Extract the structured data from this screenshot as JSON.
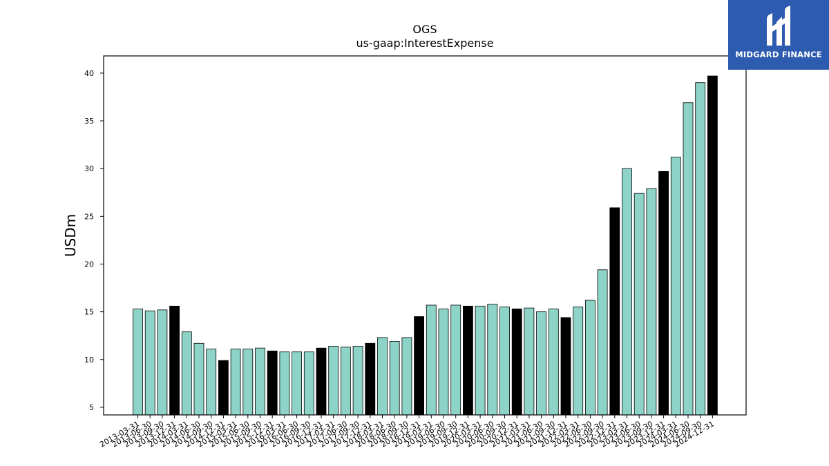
{
  "brand": {
    "name": "MIDGARD FINANCE",
    "color": "#2d5bb0"
  },
  "chart_data": {
    "type": "bar",
    "title": "OGS",
    "subtitle": "us-gaap:InterestExpense",
    "xlabel": "",
    "ylabel": "USDm",
    "ylim": [
      4.2,
      41.8
    ],
    "yticks": [
      5,
      10,
      15,
      20,
      25,
      30,
      35,
      40
    ],
    "grid": false,
    "colors": {
      "quarter": "#8dd3c7",
      "year_end": "#000000",
      "edge": "#000000"
    },
    "categories": [
      "2013-03-31",
      "2013-06-30",
      "2013-09-30",
      "2013-12-31",
      "2014-03-31",
      "2014-06-30",
      "2014-09-30",
      "2014-12-31",
      "2015-03-31",
      "2015-06-30",
      "2015-09-30",
      "2015-12-31",
      "2016-03-31",
      "2016-06-30",
      "2016-09-30",
      "2016-12-31",
      "2017-03-31",
      "2017-06-30",
      "2017-09-30",
      "2017-12-31",
      "2018-03-31",
      "2018-06-30",
      "2018-09-30",
      "2018-12-31",
      "2019-03-31",
      "2019-06-30",
      "2019-09-30",
      "2019-12-31",
      "2020-03-31",
      "2020-06-30",
      "2020-09-30",
      "2020-12-31",
      "2021-03-31",
      "2021-06-30",
      "2021-09-30",
      "2021-12-31",
      "2022-03-31",
      "2022-06-30",
      "2022-09-30",
      "2022-12-31",
      "2023-03-31",
      "2023-06-30",
      "2023-09-30",
      "2023-12-31",
      "2024-03-31",
      "2024-06-30",
      "2024-09-30",
      "2024-12-31"
    ],
    "values": [
      15.3,
      15.1,
      15.2,
      15.6,
      12.9,
      11.7,
      11.1,
      9.9,
      11.1,
      11.1,
      11.2,
      10.9,
      10.8,
      10.8,
      10.8,
      11.2,
      11.4,
      11.3,
      11.4,
      11.7,
      12.3,
      11.9,
      12.3,
      14.5,
      15.7,
      15.3,
      15.7,
      15.6,
      15.6,
      15.8,
      15.5,
      15.3,
      15.4,
      15.0,
      15.3,
      14.4,
      15.5,
      16.2,
      19.4,
      25.9,
      30.0,
      27.4,
      27.9,
      29.7,
      31.2,
      36.9,
      39.0,
      39.7
    ]
  }
}
